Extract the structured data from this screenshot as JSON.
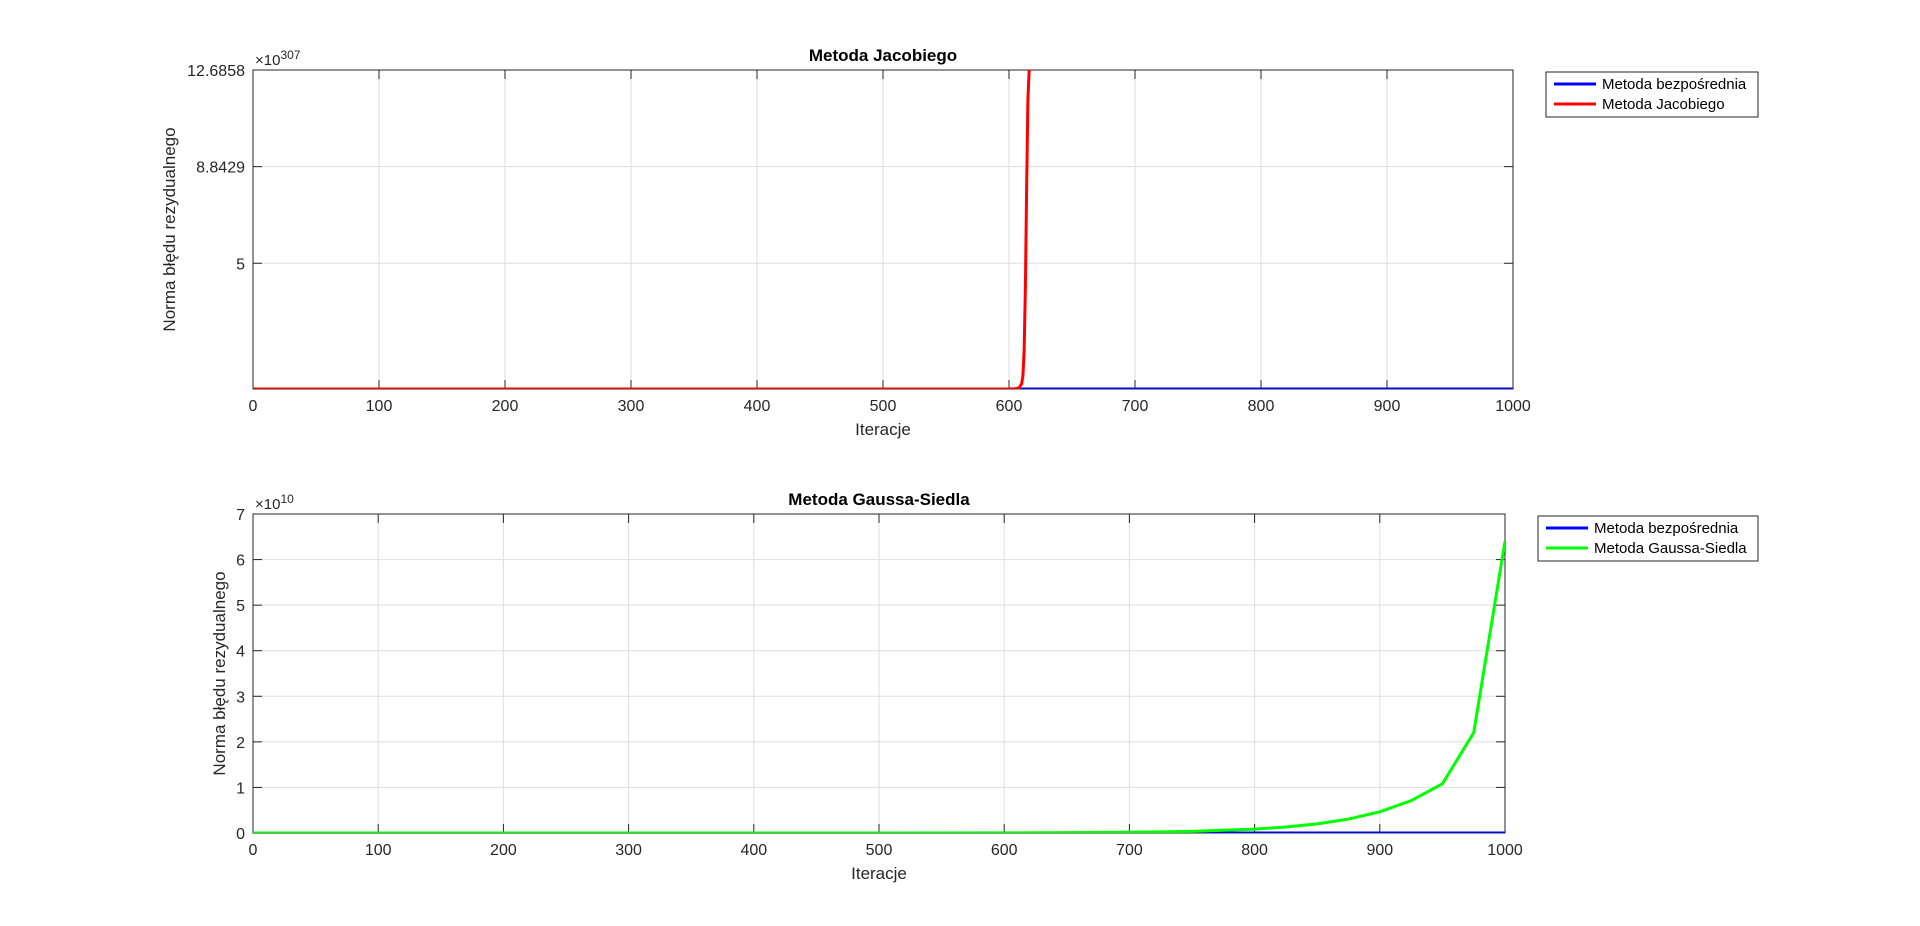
{
  "chart_data": [
    {
      "type": "line",
      "title": "Metoda Jacobiego",
      "xlabel": "Iteracje",
      "ylabel": "Norma błędu rezydualnego",
      "exponent_base": "×10",
      "exponent_power": "307",
      "xlim": [
        0,
        1000
      ],
      "ylim": [
        0,
        12.6858
      ],
      "xticks": [
        0,
        100,
        200,
        300,
        400,
        500,
        600,
        700,
        800,
        900,
        1000
      ],
      "yticks": [
        5,
        8.8429,
        12.6858
      ],
      "ytick_labels": [
        "5",
        "8.8429",
        "12.6858"
      ],
      "grid": true,
      "legend_position": "outside-right",
      "series": [
        {
          "name": "Metoda bezpośrednia",
          "color": "#0000ff",
          "x": [
            0,
            1000
          ],
          "y": [
            0,
            0
          ]
        },
        {
          "name": "Metoda Jacobiego",
          "color": "#ff0000",
          "x": [
            0,
            100,
            200,
            300,
            400,
            500,
            600,
            605,
            608,
            610,
            611,
            612,
            613,
            614,
            615,
            616
          ],
          "y": [
            0,
            0,
            0,
            0,
            0,
            0,
            0,
            0.01,
            0.05,
            0.2,
            0.5,
            1.5,
            4,
            8,
            11.5,
            12.6858
          ]
        }
      ]
    },
    {
      "type": "line",
      "title": "Metoda Gaussa-Siedla",
      "xlabel": "Iteracje",
      "ylabel": "Norma błędu rezydualnego",
      "exponent_base": "×10",
      "exponent_power": "10",
      "xlim": [
        0,
        1000
      ],
      "ylim": [
        0,
        7
      ],
      "xticks": [
        0,
        100,
        200,
        300,
        400,
        500,
        600,
        700,
        800,
        900,
        1000
      ],
      "yticks": [
        0,
        1,
        2,
        3,
        4,
        5,
        6,
        7
      ],
      "ytick_labels": [
        "0",
        "1",
        "2",
        "3",
        "4",
        "5",
        "6",
        "7"
      ],
      "grid": true,
      "legend_position": "outside-right",
      "series": [
        {
          "name": "Metoda bezpośrednia",
          "color": "#0000ff",
          "x": [
            0,
            1000
          ],
          "y": [
            0,
            0
          ]
        },
        {
          "name": "Metoda Gaussa-Siedla",
          "color": "#00ff00",
          "x": [
            0,
            100,
            200,
            300,
            400,
            500,
            600,
            650,
            700,
            750,
            800,
            825,
            850,
            875,
            900,
            925,
            950,
            975,
            1000
          ],
          "y": [
            0,
            0,
            0,
            0,
            0,
            0,
            0.003,
            0.007,
            0.016,
            0.037,
            0.086,
            0.131,
            0.2,
            0.305,
            0.465,
            0.71,
            1.08,
            2.2,
            6.4
          ]
        }
      ]
    }
  ]
}
